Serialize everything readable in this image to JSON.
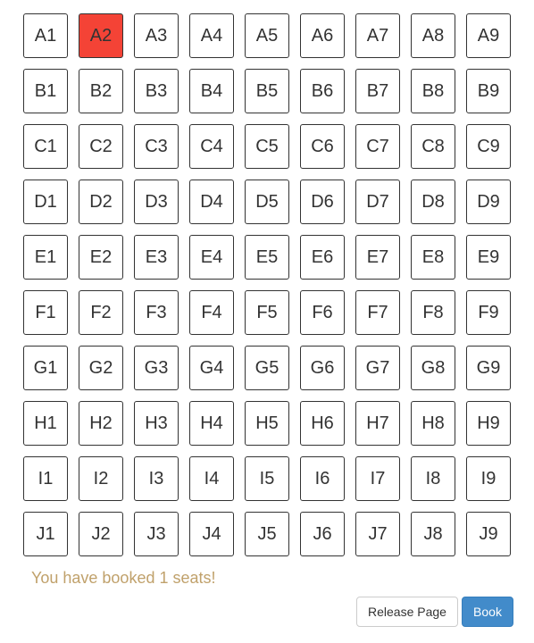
{
  "seats": [
    [
      "A1",
      "A2",
      "A3",
      "A4",
      "A5",
      "A6",
      "A7",
      "A8",
      "A9"
    ],
    [
      "B1",
      "B2",
      "B3",
      "B4",
      "B5",
      "B6",
      "B7",
      "B8",
      "B9"
    ],
    [
      "C1",
      "C2",
      "C3",
      "C4",
      "C5",
      "C6",
      "C7",
      "C8",
      "C9"
    ],
    [
      "D1",
      "D2",
      "D3",
      "D4",
      "D5",
      "D6",
      "D7",
      "D8",
      "D9"
    ],
    [
      "E1",
      "E2",
      "E3",
      "E4",
      "E5",
      "E6",
      "E7",
      "E8",
      "E9"
    ],
    [
      "F1",
      "F2",
      "F3",
      "F4",
      "F5",
      "F6",
      "F7",
      "F8",
      "F9"
    ],
    [
      "G1",
      "G2",
      "G3",
      "G4",
      "G5",
      "G6",
      "G7",
      "G8",
      "G9"
    ],
    [
      "H1",
      "H2",
      "H3",
      "H4",
      "H5",
      "H6",
      "H7",
      "H8",
      "H9"
    ],
    [
      "I1",
      "I2",
      "I3",
      "I4",
      "I5",
      "I6",
      "I7",
      "I8",
      "I9"
    ],
    [
      "J1",
      "J2",
      "J3",
      "J4",
      "J5",
      "J6",
      "J7",
      "J8",
      "J9"
    ]
  ],
  "booked_seats": [
    "A2"
  ],
  "status_message": "You have booked 1 seats!",
  "buttons": {
    "release_label": "Release Page",
    "book_label": "Book"
  },
  "colors": {
    "booked": "#f44336",
    "status_text": "#c0a16b",
    "primary": "#428bca"
  }
}
